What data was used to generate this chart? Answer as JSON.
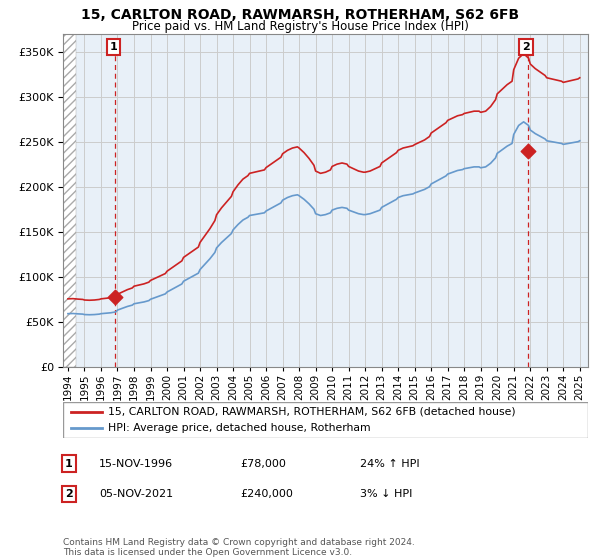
{
  "title": "15, CARLTON ROAD, RAWMARSH, ROTHERHAM, S62 6FB",
  "subtitle": "Price paid vs. HM Land Registry's House Price Index (HPI)",
  "legend_line1": "15, CARLTON ROAD, RAWMARSH, ROTHERHAM, S62 6FB (detached house)",
  "legend_line2": "HPI: Average price, detached house, Rotherham",
  "transaction1_label": "1",
  "transaction1_date": "15-NOV-1996",
  "transaction1_price": "£78,000",
  "transaction1_hpi": "24% ↑ HPI",
  "transaction2_label": "2",
  "transaction2_date": "05-NOV-2021",
  "transaction2_price": "£240,000",
  "transaction2_hpi": "3% ↓ HPI",
  "footer": "Contains HM Land Registry data © Crown copyright and database right 2024.\nThis data is licensed under the Open Government Licence v3.0.",
  "hpi_color": "#6699cc",
  "price_color": "#cc2222",
  "marker_color": "#cc2222",
  "label_box_color": "#cc2222",
  "grid_color": "#cccccc",
  "bg_color": "#ffffff",
  "plot_bg_color": "#e8f0f8",
  "ylim": [
    0,
    370000
  ],
  "xlim_start": 1993.7,
  "xlim_end": 2025.5,
  "transaction1_x": 1996.87,
  "transaction1_y": 78000,
  "transaction2_x": 2021.84,
  "transaction2_y": 240000,
  "hatch_end": 1994.5,
  "years_hpi": [
    1994.0,
    1994.3,
    1994.6,
    1994.9,
    1995.0,
    1995.3,
    1995.6,
    1995.9,
    1996.0,
    1996.3,
    1996.6,
    1996.9,
    1997.0,
    1997.3,
    1997.6,
    1997.9,
    1998.0,
    1998.3,
    1998.6,
    1998.9,
    1999.0,
    1999.3,
    1999.6,
    1999.9,
    2000.0,
    2000.3,
    2000.6,
    2000.9,
    2001.0,
    2001.3,
    2001.6,
    2001.9,
    2002.0,
    2002.3,
    2002.6,
    2002.9,
    2003.0,
    2003.3,
    2003.6,
    2003.9,
    2004.0,
    2004.3,
    2004.6,
    2004.9,
    2005.0,
    2005.3,
    2005.6,
    2005.9,
    2006.0,
    2006.3,
    2006.6,
    2006.9,
    2007.0,
    2007.3,
    2007.6,
    2007.9,
    2008.0,
    2008.3,
    2008.6,
    2008.9,
    2009.0,
    2009.3,
    2009.6,
    2009.9,
    2010.0,
    2010.3,
    2010.6,
    2010.9,
    2011.0,
    2011.3,
    2011.6,
    2011.9,
    2012.0,
    2012.3,
    2012.6,
    2012.9,
    2013.0,
    2013.3,
    2013.6,
    2013.9,
    2014.0,
    2014.3,
    2014.6,
    2014.9,
    2015.0,
    2015.3,
    2015.6,
    2015.9,
    2016.0,
    2016.3,
    2016.6,
    2016.9,
    2017.0,
    2017.3,
    2017.6,
    2017.9,
    2018.0,
    2018.3,
    2018.6,
    2018.9,
    2019.0,
    2019.3,
    2019.6,
    2019.9,
    2020.0,
    2020.3,
    2020.6,
    2020.9,
    2021.0,
    2021.3,
    2021.6,
    2021.9,
    2022.0,
    2022.3,
    2022.6,
    2022.9,
    2023.0,
    2023.3,
    2023.6,
    2023.9,
    2024.0,
    2024.3,
    2024.6,
    2024.9,
    2025.0
  ],
  "hpi_values": [
    59000,
    59200,
    58800,
    58500,
    58000,
    57800,
    58000,
    58500,
    59000,
    59500,
    60000,
    61000,
    63000,
    65000,
    67000,
    68500,
    70000,
    71000,
    72000,
    73500,
    75000,
    77000,
    79000,
    81000,
    83000,
    86000,
    89000,
    92000,
    95000,
    98000,
    101000,
    104000,
    108000,
    114000,
    120000,
    127000,
    132000,
    138000,
    143000,
    148000,
    152000,
    158000,
    163000,
    166000,
    168000,
    169000,
    170000,
    171000,
    173000,
    176000,
    179000,
    182000,
    185000,
    188000,
    190000,
    191000,
    190000,
    186000,
    181000,
    175000,
    170000,
    168000,
    169000,
    171000,
    174000,
    176000,
    177000,
    176000,
    174000,
    172000,
    170000,
    169000,
    169000,
    170000,
    172000,
    174000,
    177000,
    180000,
    183000,
    186000,
    188000,
    190000,
    191000,
    192000,
    193000,
    195000,
    197000,
    200000,
    203000,
    206000,
    209000,
    212000,
    214000,
    216000,
    218000,
    219000,
    220000,
    221000,
    222000,
    222000,
    221000,
    222000,
    226000,
    232000,
    237000,
    241000,
    245000,
    248000,
    258000,
    268000,
    272000,
    268000,
    263000,
    259000,
    256000,
    253000,
    251000,
    250000,
    249000,
    248000,
    247000,
    248000,
    249000,
    250000,
    251000
  ]
}
